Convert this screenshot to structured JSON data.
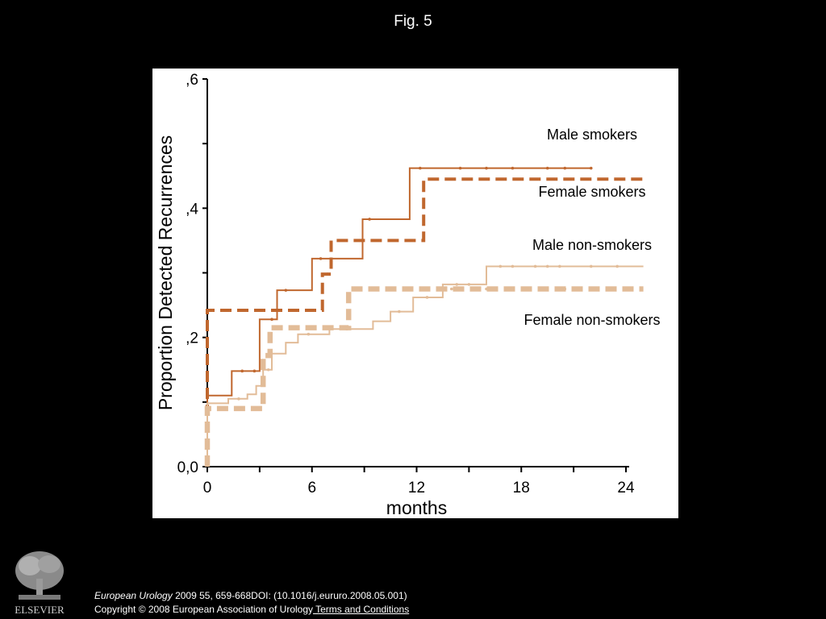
{
  "slide": {
    "title": "Fig. 5"
  },
  "citation": {
    "journal": "European Urology",
    "details": " 2009 55, 659-668DOI: (10.1016/j.eururo.2008.05.001)",
    "copyright": "Copyright © 2008 European Association of Urology",
    "terms_link": " Terms and Conditions"
  },
  "publisher": {
    "logo_text": "ELSEVIER"
  },
  "chart_data": {
    "type": "line",
    "step": true,
    "xlabel": "months",
    "ylabel": "Proportion Detected Recurrences",
    "xlim": [
      0,
      24
    ],
    "ylim": [
      0,
      0.6
    ],
    "xticks": [
      0,
      6,
      12,
      18,
      24
    ],
    "xtick_labels": [
      "0",
      "6",
      "12",
      "18",
      "24"
    ],
    "yticks": [
      0,
      0.2,
      0.4,
      0.6
    ],
    "ytick_labels": [
      "0,0",
      ",2",
      ",4",
      ",6"
    ],
    "minor_yticks": [
      0.1,
      0.3,
      0.5
    ],
    "grid": false,
    "series": [
      {
        "name": "Male smokers",
        "color": "#c0672e",
        "style": "solid",
        "points": [
          [
            0,
            0
          ],
          [
            0,
            0.11
          ],
          [
            1.4,
            0.11
          ],
          [
            1.4,
            0.148
          ],
          [
            3,
            0.148
          ],
          [
            3,
            0.228
          ],
          [
            4,
            0.228
          ],
          [
            4,
            0.273
          ],
          [
            6,
            0.273
          ],
          [
            6,
            0.322
          ],
          [
            8.9,
            0.322
          ],
          [
            8.9,
            0.383
          ],
          [
            11.6,
            0.383
          ],
          [
            11.6,
            0.462
          ],
          [
            22,
            0.462
          ]
        ],
        "censor_x": [
          2,
          2.7,
          3.7,
          4.5,
          6.5,
          9.3,
          12.2,
          14.5,
          16,
          17.5,
          19.5,
          20.5,
          22
        ]
      },
      {
        "name": "Female smokers",
        "color": "#c0672e",
        "style": "dashed",
        "points": [
          [
            0,
            0
          ],
          [
            0,
            0.242
          ],
          [
            6.6,
            0.242
          ],
          [
            6.6,
            0.298
          ],
          [
            7.1,
            0.298
          ],
          [
            7.1,
            0.35
          ],
          [
            12.4,
            0.35
          ],
          [
            12.4,
            0.445
          ],
          [
            25,
            0.445
          ]
        ],
        "censor_x": [
          6.9,
          13,
          18
        ]
      },
      {
        "name": "Male non-smokers",
        "color": "#e2bc98",
        "style": "solid",
        "points": [
          [
            0,
            0
          ],
          [
            0,
            0.098
          ],
          [
            1.2,
            0.098
          ],
          [
            1.2,
            0.105
          ],
          [
            2.3,
            0.105
          ],
          [
            2.3,
            0.112
          ],
          [
            2.8,
            0.112
          ],
          [
            2.8,
            0.125
          ],
          [
            3.2,
            0.125
          ],
          [
            3.2,
            0.15
          ],
          [
            3.7,
            0.15
          ],
          [
            3.7,
            0.175
          ],
          [
            4.5,
            0.175
          ],
          [
            4.5,
            0.192
          ],
          [
            5.2,
            0.192
          ],
          [
            5.2,
            0.205
          ],
          [
            7,
            0.205
          ],
          [
            7,
            0.213
          ],
          [
            9.5,
            0.213
          ],
          [
            9.5,
            0.225
          ],
          [
            10.5,
            0.225
          ],
          [
            10.5,
            0.24
          ],
          [
            11.8,
            0.24
          ],
          [
            11.8,
            0.262
          ],
          [
            13.5,
            0.262
          ],
          [
            13.5,
            0.282
          ],
          [
            16,
            0.282
          ],
          [
            16,
            0.31
          ],
          [
            25,
            0.31
          ]
        ],
        "censor_x": [
          1.8,
          3.5,
          5.8,
          8,
          11,
          12.6,
          14.3,
          15,
          16.8,
          17.5,
          18.8,
          19.5,
          20.2,
          22,
          23.5
        ]
      },
      {
        "name": "Female non-smokers",
        "color": "#e2bc98",
        "style": "dashed",
        "points": [
          [
            0,
            0
          ],
          [
            0,
            0.09
          ],
          [
            3.2,
            0.09
          ],
          [
            3.2,
            0.172
          ],
          [
            3.6,
            0.172
          ],
          [
            3.6,
            0.215
          ],
          [
            8.1,
            0.215
          ],
          [
            8.1,
            0.275
          ],
          [
            25,
            0.275
          ]
        ],
        "censor_x": [
          5,
          8.8,
          9.5,
          10.5,
          11.5,
          14,
          16,
          18.5,
          20.5,
          22
        ]
      }
    ]
  }
}
